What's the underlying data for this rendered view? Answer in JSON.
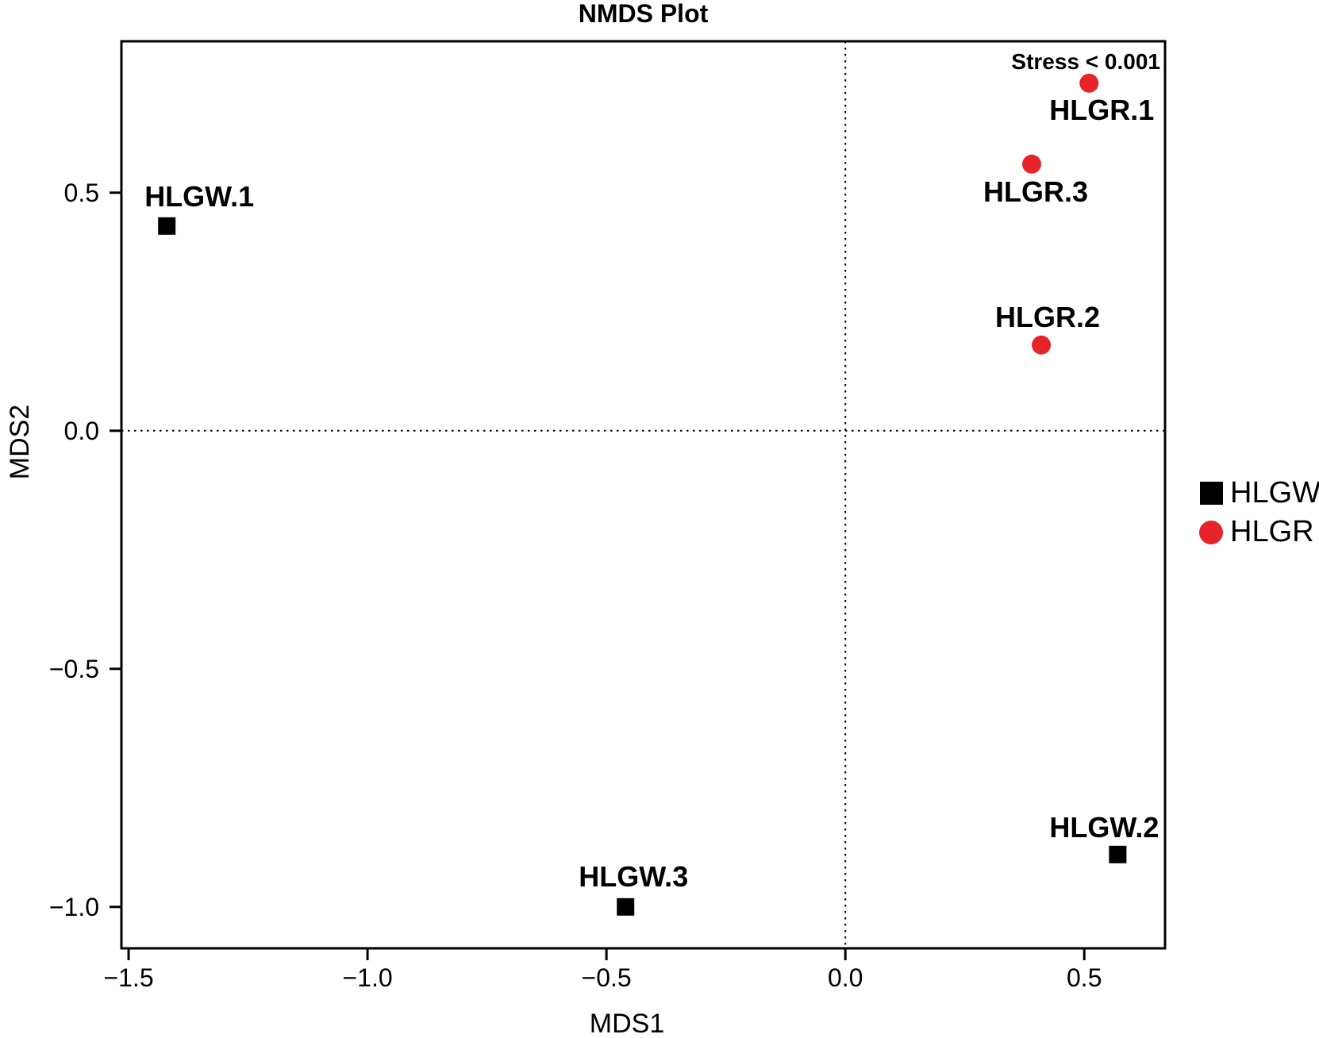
{
  "chart_data": {
    "type": "scatter",
    "title": "NMDS Plot",
    "xlabel": "MDS1",
    "ylabel": "MDS2",
    "annotation": "Stress < 0.001",
    "xlim": [
      -1.515,
      0.669
    ],
    "ylim": [
      -1.087,
      0.818
    ],
    "grid": false,
    "reference_lines": {
      "vertical_at_x": 0.0,
      "horizontal_at_y": 0.0,
      "style": "dotted"
    },
    "x_ticks": [
      {
        "value": -1.5,
        "label": "−1.5"
      },
      {
        "value": -1.0,
        "label": "−1.0"
      },
      {
        "value": -0.5,
        "label": "−0.5"
      },
      {
        "value": 0.0,
        "label": "0.0"
      },
      {
        "value": 0.5,
        "label": "0.5"
      }
    ],
    "y_ticks": [
      {
        "value": 0.5,
        "label": "0.5"
      },
      {
        "value": 0.0,
        "label": "0.0"
      },
      {
        "value": -0.5,
        "label": "−0.5"
      },
      {
        "value": -1.0,
        "label": "−1.0"
      }
    ],
    "series": [
      {
        "name": "HLGW",
        "marker": "square",
        "color": "#000000",
        "points": [
          {
            "label": "HLGW.1",
            "x": -1.42,
            "y": 0.43,
            "label_dx": 41,
            "label_dy": -37
          },
          {
            "label": "HLGW.2",
            "x": 0.57,
            "y": -0.89,
            "label_dx": -17,
            "label_dy": -34
          },
          {
            "label": "HLGW.3",
            "x": -0.46,
            "y": -1.0,
            "label_dx": 10,
            "label_dy": -38
          }
        ]
      },
      {
        "name": "HLGR",
        "marker": "circle",
        "color": "#e62429",
        "points": [
          {
            "label": "HLGR.1",
            "x": 0.51,
            "y": 0.73,
            "label_dx": 16,
            "label_dy": 34
          },
          {
            "label": "HLGR.2",
            "x": 0.41,
            "y": 0.18,
            "label_dx": 8,
            "label_dy": -35
          },
          {
            "label": "HLGR.3",
            "x": 0.39,
            "y": 0.56,
            "label_dx": 5,
            "label_dy": 35
          }
        ]
      }
    ],
    "legend": {
      "position": "right-outside"
    }
  }
}
